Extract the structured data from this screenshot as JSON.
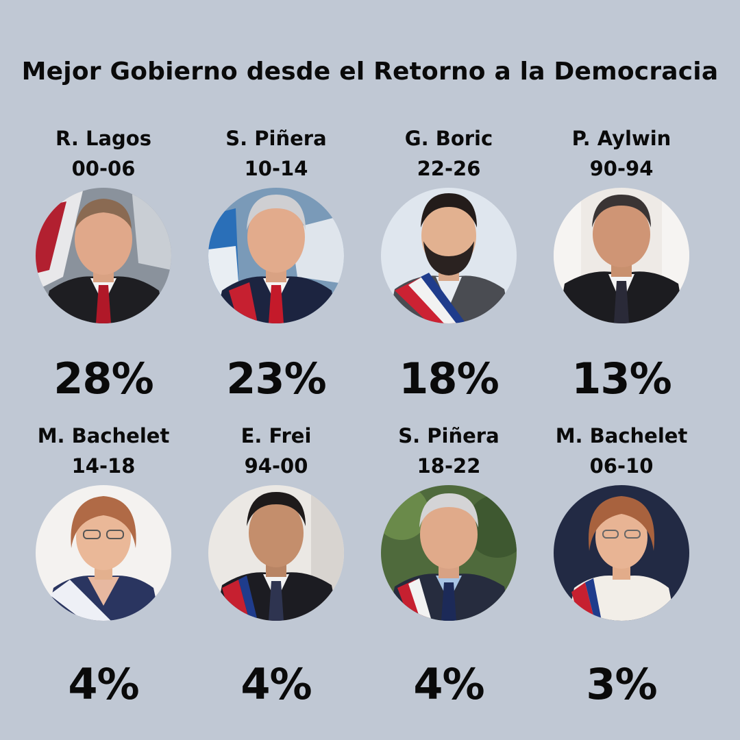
{
  "title": "Mejor Gobierno desde el Retorno a la Democracia",
  "colors": {
    "background": "#c0c8d4",
    "text": "#0a0a0a"
  },
  "results": [
    {
      "name": "R. Lagos",
      "years": "00-06",
      "percent": "28%",
      "value": 28
    },
    {
      "name": "S. Piñera",
      "years": "10-14",
      "percent": "23%",
      "value": 23
    },
    {
      "name": "G. Boric",
      "years": "22-26",
      "percent": "18%",
      "value": 18
    },
    {
      "name": "P. Aylwin",
      "years": "90-94",
      "percent": "13%",
      "value": 13
    },
    {
      "name": "M. Bachelet",
      "years": "14-18",
      "percent": "4%",
      "value": 4
    },
    {
      "name": "E. Frei",
      "years": "94-00",
      "percent": "4%",
      "value": 4
    },
    {
      "name": "S. Piñera",
      "years": "18-22",
      "percent": "4%",
      "value": 4
    },
    {
      "name": "M. Bachelet",
      "years": "06-10",
      "percent": "3%",
      "value": 3
    }
  ]
}
